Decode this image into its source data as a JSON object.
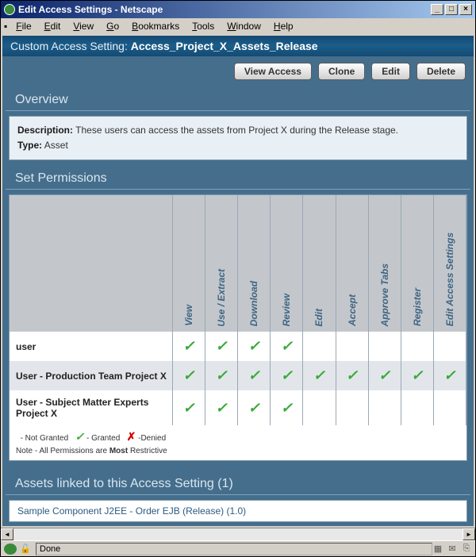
{
  "window": {
    "title": "Edit Access Settings - Netscape",
    "min": "_",
    "max": "□",
    "close": "×"
  },
  "menu": {
    "file": "File",
    "edit": "Edit",
    "view": "View",
    "go": "Go",
    "bookmarks": "Bookmarks",
    "tools": "Tools",
    "window": "Window",
    "help": "Help"
  },
  "header": {
    "prefix": "Custom Access Setting:",
    "name": "Access_Project_X_Assets_Release"
  },
  "buttons": {
    "view_access": "View Access",
    "clone": "Clone",
    "edit": "Edit",
    "delete": "Delete"
  },
  "overview": {
    "title": "Overview",
    "desc_label": "Description:",
    "desc_text": "These users can access the assets from Project X during the Release stage.",
    "type_label": "Type:",
    "type_text": "Asset"
  },
  "permissions": {
    "title": "Set Permissions",
    "columns": [
      "View",
      "Use / Extract",
      "Download",
      "Review",
      "Edit",
      "Accept",
      "Approve Tabs",
      "Register",
      "Edit Access Settings"
    ],
    "rows": [
      {
        "role": "user",
        "grants": [
          true,
          true,
          true,
          true,
          false,
          false,
          false,
          false,
          false
        ]
      },
      {
        "role": "User - Production Team Project X",
        "grants": [
          true,
          true,
          true,
          true,
          true,
          true,
          true,
          true,
          true
        ]
      },
      {
        "role": "User - Subject Matter Experts Project X",
        "grants": [
          true,
          true,
          true,
          true,
          false,
          false,
          false,
          false,
          false
        ]
      }
    ],
    "legend": {
      "not_granted": "- Not Granted",
      "granted": "- Granted",
      "denied": "-Denied",
      "note": "Note - All Permissions are",
      "most_restrictive": "Most",
      "restrictive": "Restrictive"
    },
    "check_glyph": "✓",
    "deny_glyph": "✗"
  },
  "assets": {
    "title": "Assets linked to this Access Setting (1)",
    "items": [
      "Sample Component J2EE - Order EJB (Release) (1.0)"
    ]
  },
  "status": {
    "text": "Done"
  },
  "colors": {
    "nav_band": "#144a73",
    "page_bg": "#456e8c",
    "box_bg": "#e8eff5",
    "header_text": "#d9e6ef",
    "col_label": "#3f6582",
    "check": "#39a939",
    "deny": "#d60000"
  }
}
